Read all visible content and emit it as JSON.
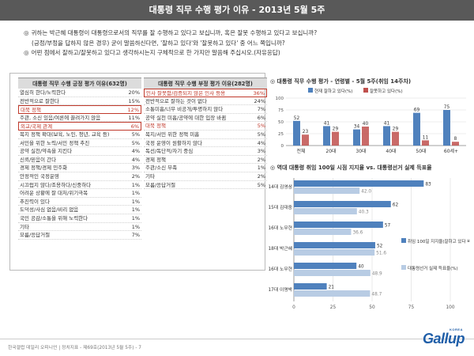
{
  "header": {
    "title": "대통령 직무 수행 평가 이유 - 2013년 5월 5주"
  },
  "questions": [
    {
      "bullet": "◎",
      "text": "귀하는 박근혜 대통령이 대통령으로서의 직무를 잘 수행하고 있다고 보십니까, 혹은 잘못 수행하고 있다고 보십니까?"
    },
    {
      "bullet": "",
      "text": "(긍정/부정을 답하지 않은 경우) 굳이 말씀하신다면, '잘하고 있다'와 '잘못하고 있다' 중 어느 쪽입니까?"
    },
    {
      "bullet": "◎",
      "text": "어떤 점에서 잘하고/잘못하고 있다고 생각하시는지 구체적으로 한 가지만 말씀해 주십시오.(자유응답)"
    }
  ],
  "positive": {
    "title": "대통령 직무 수행 긍정 평가 이유(632명)",
    "rows": [
      {
        "label": "열심히 한다/노력한다",
        "value": "20%",
        "style": ""
      },
      {
        "label": "전반적으로 잘한다",
        "value": "15%",
        "style": ""
      },
      {
        "label": "대북 정책",
        "value": "12%",
        "style": "hl-box"
      },
      {
        "label": "주관, 소신 있음/여론에 끌려가지 않음",
        "value": "11%",
        "style": ""
      },
      {
        "label": "외교/국제 관계",
        "value": "6%",
        "style": "hl-box"
      },
      {
        "label": "복지 정책 확대(보육, 노인, 청년, 교육 등)",
        "value": "5%",
        "style": ""
      },
      {
        "label": "서민을 위한 노력/서민 정책 추진",
        "value": "5%",
        "style": ""
      },
      {
        "label": "공약 실천/약속을 지킨다",
        "value": "4%",
        "style": ""
      },
      {
        "label": "신뢰/믿음이 간다",
        "value": "4%",
        "style": ""
      },
      {
        "label": "경제 정책/경제 민주화",
        "value": "3%",
        "style": ""
      },
      {
        "label": "안정적인 국정운영",
        "value": "2%",
        "style": ""
      },
      {
        "label": "시끄럽지 않다/조용하다/신중하다",
        "value": "1%",
        "style": ""
      },
      {
        "label": "어려운 상황에 잘 대처/위기극복",
        "value": "1%",
        "style": ""
      },
      {
        "label": "추진력이 있다",
        "value": "1%",
        "style": ""
      },
      {
        "label": "도덕성/사심 없음/비리 없음",
        "value": "1%",
        "style": ""
      },
      {
        "label": "국민 공감/소통을 위해 노력한다",
        "value": "1%",
        "style": ""
      },
      {
        "label": "기타",
        "value": "1%",
        "style": ""
      },
      {
        "label": "모름/응답거절",
        "value": "7%",
        "style": ""
      }
    ]
  },
  "negative": {
    "title": "대통령 직무 수행 부정 평가 이유(282명)",
    "rows": [
      {
        "label": "인사 잘못함/검증되지 않은 인사 등용",
        "value": "36%",
        "style": "hl-box"
      },
      {
        "label": "전반적으로 잘하는 것이 없다",
        "value": "24%",
        "style": ""
      },
      {
        "label": "소통미흡/너무 비공개/투명하지 않다",
        "value": "7%",
        "style": ""
      },
      {
        "label": "공약 실천 미흡/공약에 대한 입장 바뀜",
        "value": "6%",
        "style": ""
      },
      {
        "label": "대북 정책",
        "value": "5%",
        "style": "hl"
      },
      {
        "label": "복지/서민 위한 정책 미흡",
        "value": "5%",
        "style": ""
      },
      {
        "label": "국정 운영이 원활하지 않다",
        "value": "4%",
        "style": ""
      },
      {
        "label": "독선/독단적/자기 중심",
        "value": "3%",
        "style": ""
      },
      {
        "label": "경제 정책",
        "value": "2%",
        "style": ""
      },
      {
        "label": "주관/소신 부족",
        "value": "1%",
        "style": ""
      },
      {
        "label": "기타",
        "value": "2%",
        "style": ""
      },
      {
        "label": "모름/응답거절",
        "value": "5%",
        "style": ""
      }
    ]
  },
  "colors": {
    "blue": "#4f81bd",
    "red": "#c0504d",
    "light_blue": "#b8cce4",
    "grid": "#d9d9d9"
  },
  "chart_data": [
    {
      "type": "bar",
      "title": "대통령 직무 수행 평가 - 연령별 - 5월 5주(취임 14주차)",
      "categories": [
        "전체",
        "20대",
        "30대",
        "40대",
        "50대",
        "60세+"
      ],
      "series": [
        {
          "name": "현재 잘하고 있다(%)",
          "values": [
            52,
            41,
            34,
            41,
            69,
            75
          ]
        },
        {
          "name": "잘못하고 있다(%)",
          "values": [
            23,
            29,
            40,
            29,
            11,
            8
          ]
        }
      ],
      "ylim": [
        0,
        100
      ],
      "yticks": [
        0,
        25,
        50,
        75,
        100
      ],
      "grid": true,
      "legend": "top"
    },
    {
      "type": "bar",
      "orientation": "horizontal",
      "title": "역대 대통령 취임 100일 시점 지지율 vs. 대통령선거 실제 득표율",
      "categories": [
        "14대 김영삼",
        "15대 김대중",
        "16대 노무현",
        "18대 박근혜",
        "16대 노무현",
        "17대 이명박"
      ],
      "series": [
        {
          "name": "취임 100일 지지율(잘하고 있다 비율)",
          "values": [
            83,
            62,
            57,
            52,
            40,
            21
          ]
        },
        {
          "name": "대통령선거 실제 득표율(%)",
          "values": [
            42.0,
            40.3,
            36.6,
            51.6,
            48.9,
            48.7
          ]
        }
      ],
      "xlim": [
        0,
        100
      ],
      "xticks": [
        0,
        25,
        50,
        75,
        100
      ],
      "grid": true,
      "legend": "right"
    }
  ],
  "footer": {
    "source": "한국갤럽 데일리 오피니언 | 정치지표 - 제69호(2013년 5월 5주) - 7",
    "logo": "Gallup",
    "logo_korea": "KOREA"
  }
}
